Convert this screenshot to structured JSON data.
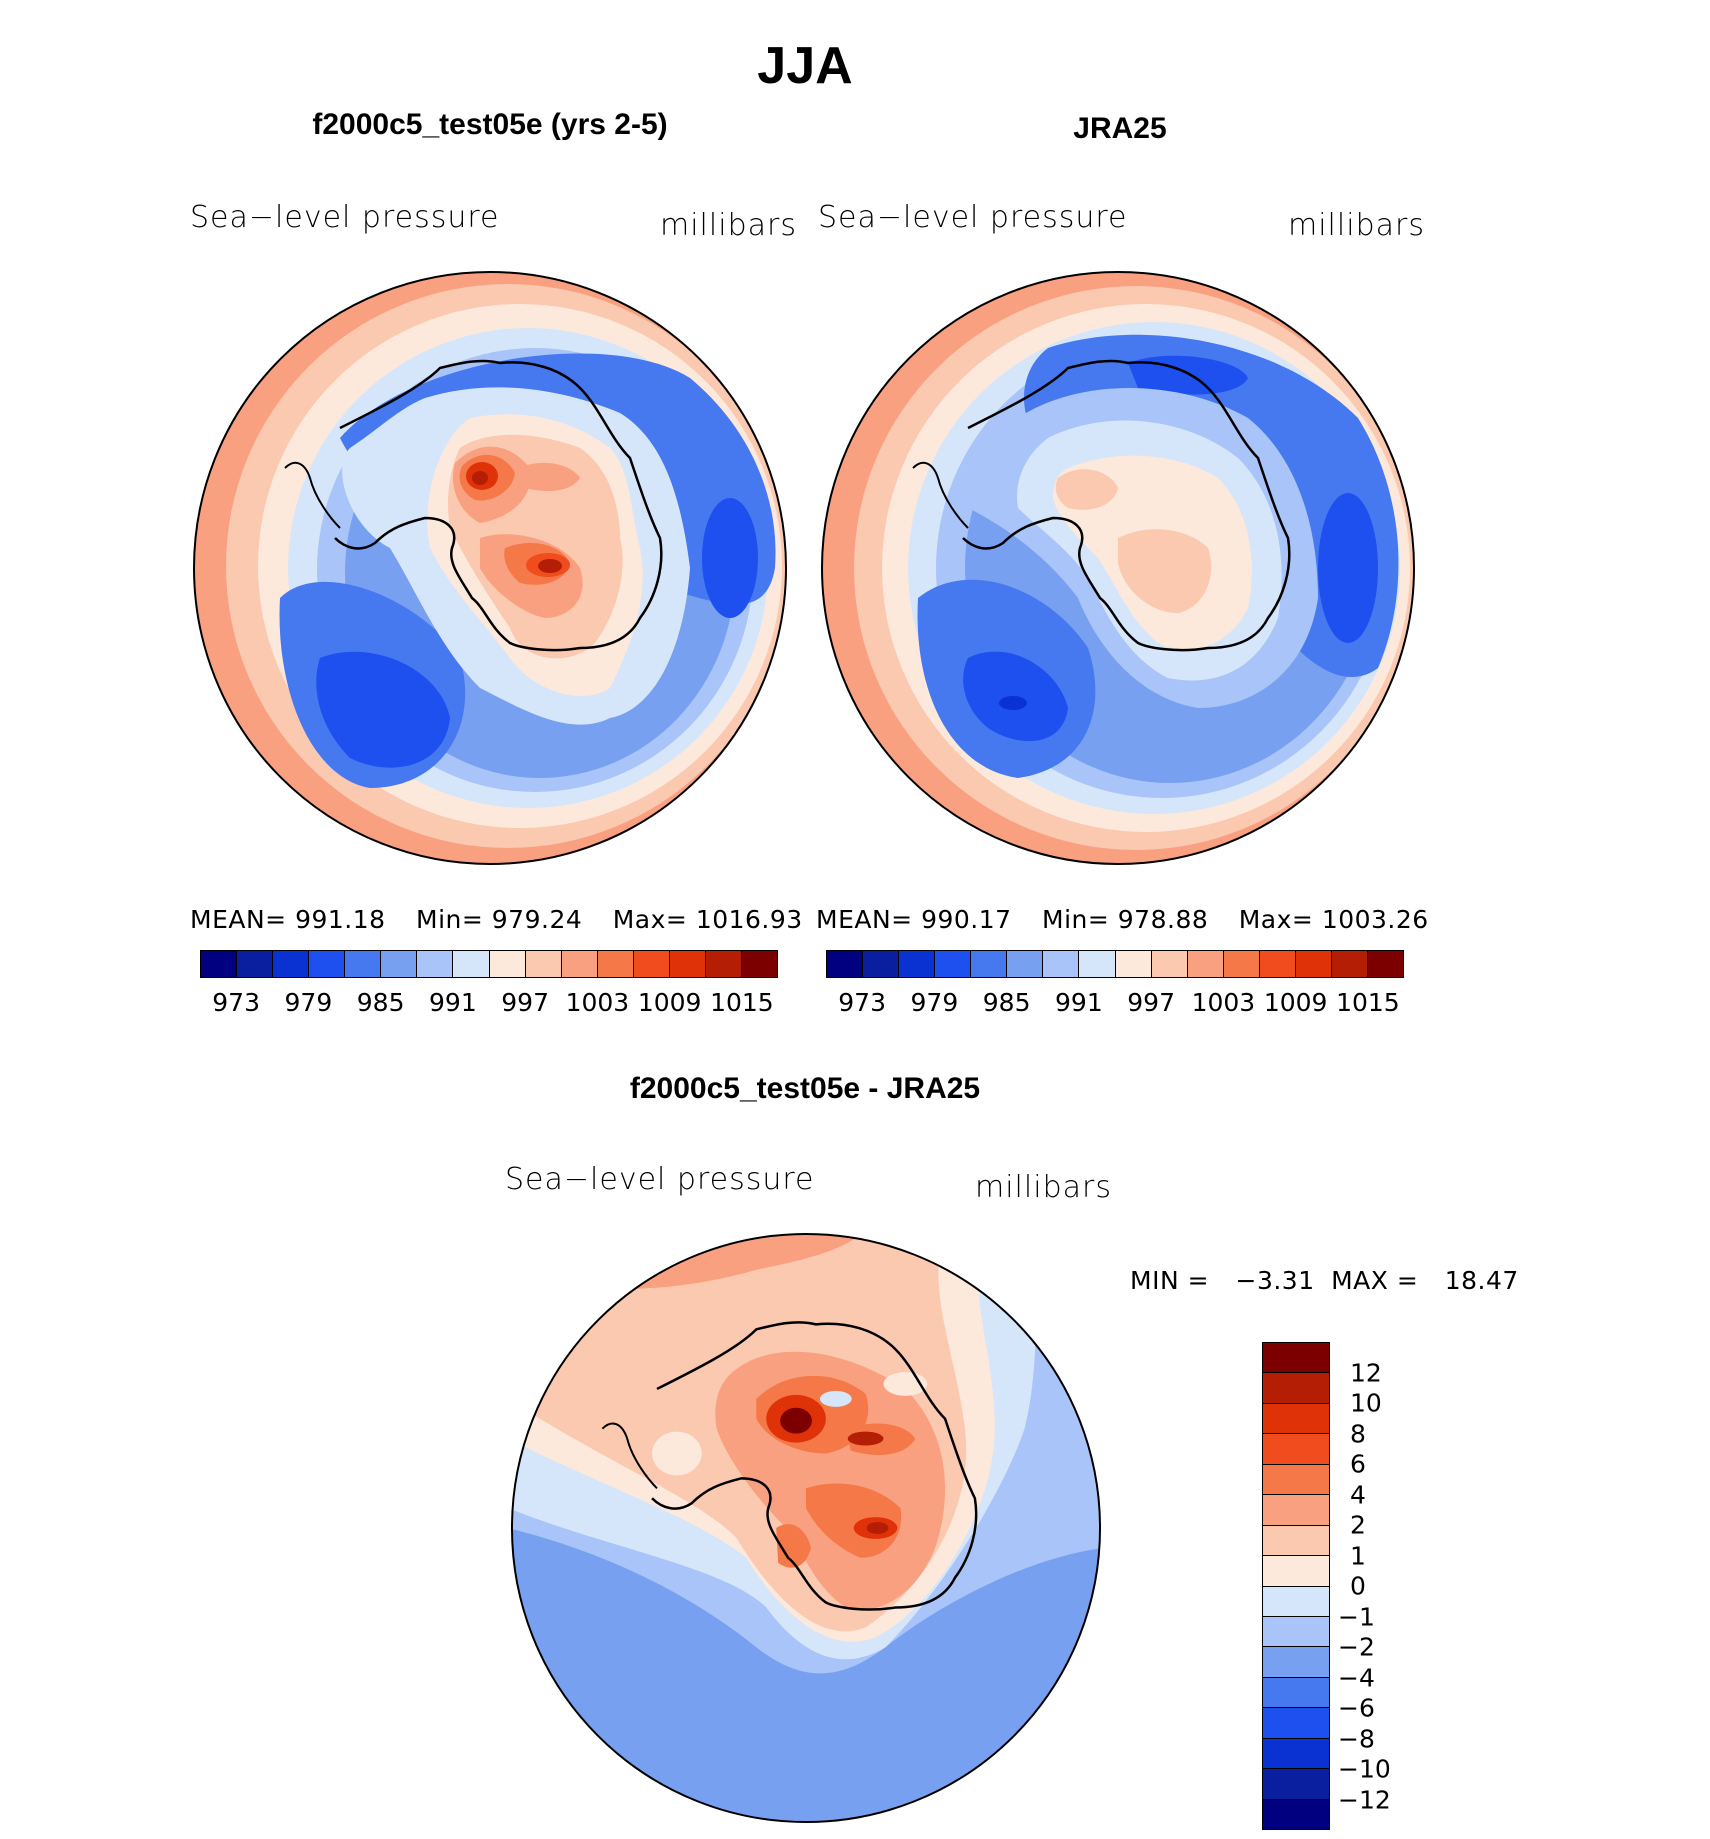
{
  "figure_title": "JJA",
  "colors": {
    "slp_scale": [
      "#000080",
      "#0a1ea0",
      "#0a32d2",
      "#1e50f0",
      "#4678f0",
      "#78a0f0",
      "#a8c4f8",
      "#d6e6fa",
      "#fde8dc",
      "#fbc8b0",
      "#f9a080",
      "#f57848",
      "#f04c1e",
      "#e03208",
      "#b41e05",
      "#7d0000"
    ],
    "diff_scale": [
      "#7d0000",
      "#b41e05",
      "#e03208",
      "#f04c1e",
      "#f57848",
      "#f9a080",
      "#fbc8b0",
      "#fde8dc",
      "#d6e6fa",
      "#a8c4f8",
      "#78a0f0",
      "#4678f0",
      "#1e50f0",
      "#0a32d2",
      "#0a1ea0",
      "#000080"
    ]
  },
  "chart_data": [
    {
      "type": "heatmap",
      "projection": "south-polar-stereographic",
      "title": "f2000c5_test05e (yrs 2-5)",
      "left_label": "Sea−level pressure",
      "right_label": "millibars",
      "stats": {
        "mean_label": "MEAN=",
        "mean": "991.18",
        "min_label": "Min=",
        "min": "979.24",
        "max_label": "Max=",
        "max": "1016.93"
      },
      "levels": [
        973,
        976,
        979,
        982,
        985,
        988,
        991,
        994,
        997,
        1000,
        1003,
        1006,
        1009,
        1012,
        1015
      ],
      "tick_labels": [
        "973",
        "979",
        "985",
        "991",
        "997",
        "1003",
        "1009",
        "1015"
      ]
    },
    {
      "type": "heatmap",
      "projection": "south-polar-stereographic",
      "title": "JRA25",
      "left_label": "Sea−level pressure",
      "right_label": "millibars",
      "stats": {
        "mean_label": "MEAN=",
        "mean": "990.17",
        "min_label": "Min=",
        "min": "978.88",
        "max_label": "Max=",
        "max": "1003.26"
      },
      "levels": [
        973,
        976,
        979,
        982,
        985,
        988,
        991,
        994,
        997,
        1000,
        1003,
        1006,
        1009,
        1012,
        1015
      ],
      "tick_labels": [
        "973",
        "979",
        "985",
        "991",
        "997",
        "1003",
        "1009",
        "1015"
      ]
    },
    {
      "type": "heatmap",
      "projection": "south-polar-stereographic",
      "title": "f2000c5_test05e - JRA25",
      "left_label": "Sea−level pressure",
      "right_label": "millibars",
      "stats": {
        "min_label": "MIN =",
        "min": "−3.31",
        "max_label": "MAX =",
        "max": "18.47"
      },
      "tick_labels": [
        "12",
        "10",
        "8",
        "6",
        "4",
        "2",
        "1",
        "0",
        "−1",
        "−2",
        "−4",
        "−6",
        "−8",
        "−10",
        "−12"
      ]
    }
  ]
}
